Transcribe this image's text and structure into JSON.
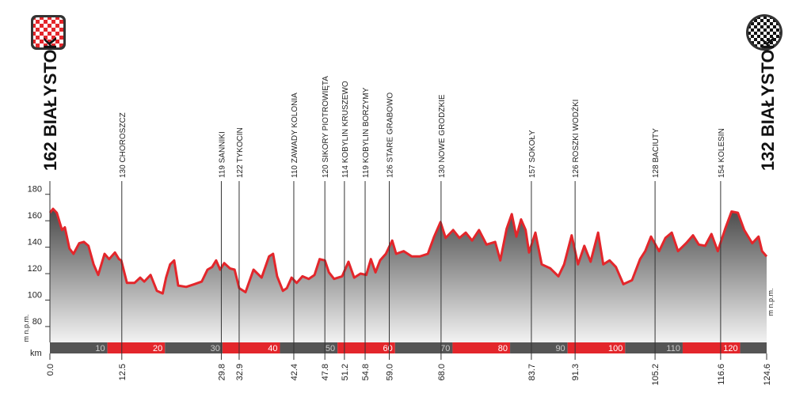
{
  "chart_data": {
    "type": "area",
    "x": [
      0,
      0.55,
      1.2,
      2.1,
      2.6,
      3.4,
      4.1,
      5.1,
      5.9,
      6.7,
      7.6,
      8.4,
      9.5,
      10.3,
      11.3,
      12.0,
      12.4,
      13.4,
      14.7,
      15.7,
      16.4,
      17.5,
      18.6,
      19.6,
      20.2,
      20.9,
      21.6,
      22.3,
      23.7,
      25.1,
      26.4,
      27.4,
      28.2,
      28.9,
      29.6,
      30.3,
      31.3,
      32.1,
      32.9,
      34.0,
      35.4,
      36.8,
      38.1,
      38.8,
      39.5,
      40.5,
      41.2,
      42.0,
      42.9,
      43.9,
      45.0,
      46.0,
      46.9,
      47.8,
      48.5,
      49.4,
      50.8,
      51.9,
      52.9,
      54.0,
      55.0,
      55.8,
      56.6,
      57.4,
      58.4,
      59.5,
      60.2,
      61.5,
      62.9,
      64.3,
      65.7,
      66.8,
      67.9,
      68.8,
      70.1,
      71.2,
      72.3,
      73.4,
      74.6,
      75.9,
      77.4,
      78.3,
      79.4,
      80.3,
      81.1,
      81.9,
      82.7,
      83.3,
      84.4,
      85.5,
      87.0,
      88.4,
      89.4,
      90.7,
      91.8,
      92.9,
      94.0,
      95.3,
      96.2,
      97.3,
      98.4,
      99.7,
      101.2,
      102.6,
      103.5,
      104.5,
      105.9,
      107.0,
      108.1,
      109.2,
      110.6,
      111.8,
      112.8,
      113.9,
      115.0,
      116.1,
      117.4,
      118.5,
      119.6,
      120.7,
      122.1,
      123.2,
      123.8,
      124.6
    ],
    "values": [
      166,
      169,
      166,
      153,
      155,
      139,
      135,
      143,
      144,
      141,
      127,
      119,
      135,
      131,
      136,
      131,
      130,
      113,
      113,
      117,
      114,
      119,
      107,
      105,
      117,
      127,
      130,
      111,
      110,
      112,
      114,
      123,
      125,
      130,
      123,
      128,
      124,
      123,
      109,
      106,
      123,
      117,
      133,
      135,
      118,
      107,
      109,
      117,
      113,
      118,
      116,
      119,
      131,
      130,
      121,
      116,
      118,
      129,
      117,
      120,
      119,
      131,
      121,
      130,
      135,
      145,
      135,
      137,
      133,
      133,
      135,
      148,
      159,
      147,
      153,
      147,
      151,
      145,
      153,
      142,
      144,
      130,
      154,
      165,
      148,
      161,
      153,
      136,
      151,
      127,
      124,
      118,
      127,
      149,
      127,
      141,
      129,
      151,
      127,
      130,
      125,
      112,
      115,
      131,
      137,
      148,
      137,
      147,
      151,
      137,
      143,
      149,
      142,
      141,
      150,
      137,
      154,
      167,
      166,
      153,
      143,
      148,
      137,
      133
    ],
    "xlim": [
      0,
      124.6
    ],
    "ylim": [
      68,
      190
    ],
    "yticks": [
      80,
      100,
      120,
      140,
      160,
      180
    ],
    "xticks": [
      {
        "value": 0,
        "label": "0.0"
      },
      12.5,
      29.8,
      32.9,
      42.4,
      47.8,
      51.2,
      54.8,
      {
        "value": 59,
        "label": "59.0"
      },
      {
        "value": 68,
        "label": "68.0"
      },
      83.7,
      91.3,
      105.2,
      116.6,
      124.6
    ],
    "xtick_names": [
      "162 BIAŁYSTOK",
      "130 CHOROSZCZ",
      "119 SANNIKI",
      "122 TYKOCIN",
      "110 ZAWADY KOLONIA",
      "120 SIKORY PIOTROWIĘTA",
      "114 KOBYLIN KRUSZEWO",
      "119 KOBYLIN BORZYMY",
      "126 STARE GRABOWO",
      "130 NOWE GRODZKIE",
      "157 SOKOŁY",
      "126 ROSZKI WODŹKI",
      "128 BACIUTY",
      "154 KOLESIN",
      "132 BIAŁYSTOK"
    ],
    "band_ticks": [
      10,
      20,
      30,
      40,
      50,
      60,
      70,
      80,
      90,
      100,
      110,
      120
    ],
    "ylabel": "m n.p.m.",
    "xlabel": "km",
    "line_color": "#e3262b",
    "band_colors": [
      "#555555",
      "#e3262b"
    ]
  }
}
